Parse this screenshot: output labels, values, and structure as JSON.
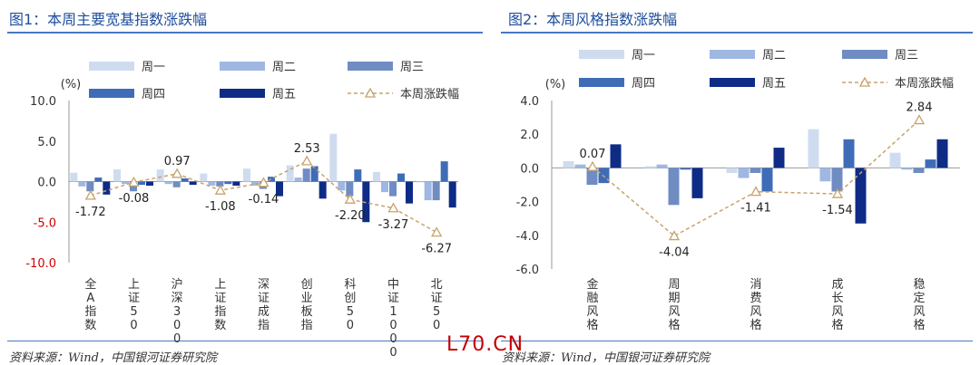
{
  "left": {
    "title": "图1：本周主要宽基指数涨跌幅",
    "source": "资料来源：Wind，中国银河证券研究院",
    "chart_data": {
      "type": "bar",
      "unit": "(%)",
      "categories": [
        "全A指数",
        "上证50",
        "沪深300",
        "上证指数",
        "深证成指",
        "创业板指",
        "科创50",
        "中证1000",
        "北证50"
      ],
      "series": [
        {
          "name": "周一",
          "color": "#cfdcef",
          "values": [
            1.1,
            1.5,
            1.5,
            1.0,
            1.6,
            2.0,
            5.9,
            1.2,
            -0.1
          ]
        },
        {
          "name": "周二",
          "color": "#9fb8e2",
          "values": [
            -0.6,
            -0.3,
            -0.3,
            -0.5,
            -0.5,
            0.5,
            -1.1,
            -1.3,
            -2.3
          ]
        },
        {
          "name": "周三",
          "color": "#6f8cc3",
          "values": [
            -1.2,
            -1.2,
            -0.7,
            -0.6,
            -0.9,
            1.6,
            -1.8,
            -1.8,
            -2.3
          ]
        },
        {
          "name": "周四",
          "color": "#3f6cb7",
          "values": [
            0.5,
            -0.4,
            0.4,
            -0.3,
            0.6,
            1.9,
            1.5,
            1.0,
            2.5
          ]
        },
        {
          "name": "周五",
          "color": "#0e2c86",
          "values": [
            -1.6,
            -0.5,
            -0.4,
            -0.5,
            -1.8,
            -2.1,
            -5.0,
            -2.7,
            -3.2
          ]
        }
      ],
      "line": {
        "name": "本周涨跌幅",
        "color": "#c8a26a",
        "values": [
          -1.72,
          -0.08,
          0.97,
          -1.08,
          -0.14,
          2.53,
          -2.2,
          -3.27,
          -6.27
        ]
      },
      "data_labels": [
        "-1.72",
        "-0.08",
        "0.97",
        "-1.08",
        "-0.14",
        "2.53",
        "-2.20",
        "-3.27",
        "-6.27"
      ],
      "ylim": [
        -10,
        10
      ],
      "yticks": [
        "10.0",
        "5.0",
        "0.0",
        "-5.0",
        "-10.0"
      ],
      "ytick_values": [
        10,
        5,
        0,
        -5,
        -10
      ]
    }
  },
  "right": {
    "title": "图2：本周风格指数涨跌幅",
    "source": "资料来源：Wind，中国银河证券研究院",
    "chart_data": {
      "type": "bar",
      "unit": "(%)",
      "categories": [
        "金融风格",
        "周期风格",
        "消费风格",
        "成长风格",
        "稳定风格"
      ],
      "series": [
        {
          "name": "周一",
          "color": "#cfdcef",
          "values": [
            0.4,
            0.1,
            -0.3,
            2.3,
            0.9
          ]
        },
        {
          "name": "周二",
          "color": "#9fb8e2",
          "values": [
            0.2,
            0.2,
            -0.6,
            -0.8,
            -0.1
          ]
        },
        {
          "name": "周三",
          "color": "#6f8cc3",
          "values": [
            -1.0,
            -2.2,
            -0.3,
            -1.4,
            -0.3
          ]
        },
        {
          "name": "周四",
          "color": "#3f6cb7",
          "values": [
            -0.9,
            -0.1,
            -1.4,
            1.7,
            0.5
          ]
        },
        {
          "name": "周五",
          "color": "#0e2c86",
          "values": [
            1.4,
            -1.8,
            1.2,
            -3.3,
            1.7
          ]
        }
      ],
      "line": {
        "name": "本周涨跌幅",
        "color": "#c8a26a",
        "values": [
          0.07,
          -4.04,
          -1.41,
          -1.54,
          2.84
        ]
      },
      "data_labels": [
        "0.07",
        "-4.04",
        "-1.41",
        "-1.54",
        "2.84"
      ],
      "ylim": [
        -6,
        4
      ],
      "yticks": [
        "4.0",
        "2.0",
        "0.0",
        "-2.0",
        "-4.0",
        "-6.0"
      ],
      "ytick_values": [
        4,
        2,
        0,
        -2,
        -4,
        -6
      ]
    }
  },
  "watermark": "L70.CN"
}
